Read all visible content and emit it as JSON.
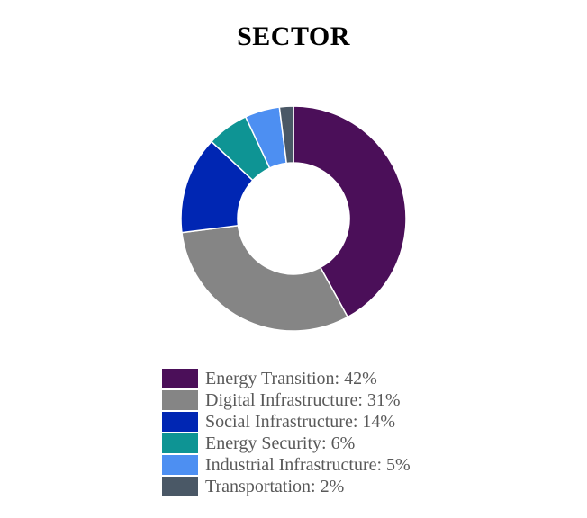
{
  "chart_data": {
    "type": "pie",
    "title": "SECTOR",
    "donut": true,
    "legend_position": "bottom",
    "slices": [
      {
        "label": "Energy Transition: 42%",
        "value": 42,
        "color": "#4B0F59"
      },
      {
        "label": "Digital Infrastructure: 31%",
        "value": 31,
        "color": "#858585"
      },
      {
        "label": "Social Infrastructure: 14%",
        "value": 14,
        "color": "#0026B3"
      },
      {
        "label": "Energy Security: 6%",
        "value": 6,
        "color": "#0E9494"
      },
      {
        "label": "Industrial Infrastructure: 5%",
        "value": 5,
        "color": "#4D8FF2"
      },
      {
        "label": "Transportation: 2%",
        "value": 2,
        "color": "#4A5866"
      }
    ]
  }
}
